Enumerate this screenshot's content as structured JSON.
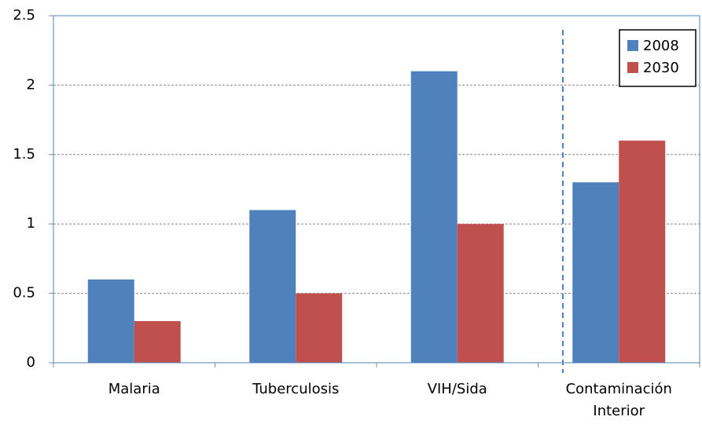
{
  "chart_data": {
    "type": "bar",
    "categories": [
      "Malaria",
      "Tuberculosis",
      "VIH/Sida",
      "Contaminación Interior"
    ],
    "series": [
      {
        "name": "2008",
        "color": "#4f81bd",
        "values": [
          0.6,
          1.1,
          2.1,
          1.3
        ]
      },
      {
        "name": "2030",
        "color": "#c0504d",
        "values": [
          0.3,
          0.5,
          1.0,
          1.6
        ]
      }
    ],
    "ylim": [
      0,
      2.5
    ],
    "yticks": [
      0,
      0.5,
      1,
      1.5,
      2,
      2.5
    ],
    "grid": true,
    "legend": "top-right"
  }
}
